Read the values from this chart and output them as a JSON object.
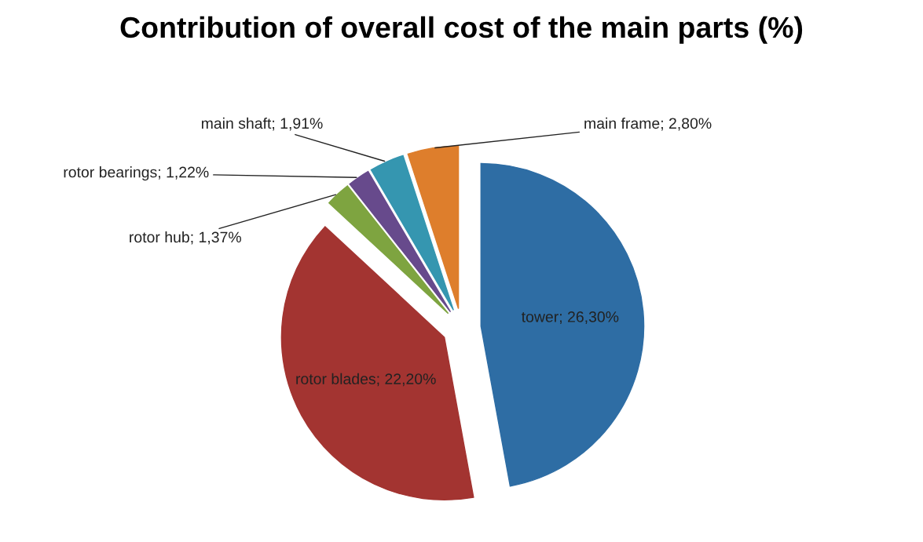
{
  "chart_data": {
    "type": "pie",
    "title": "Contribution of overall cost of the main parts (%)",
    "categories": [
      "tower",
      "rotor blades",
      "rotor hub",
      "rotor bearings",
      "main shaft",
      "main frame"
    ],
    "values": [
      26.3,
      22.2,
      1.37,
      1.22,
      1.91,
      2.8
    ],
    "value_labels": [
      "26,30%",
      "22,20%",
      "1,37%",
      "1,22%",
      "1,91%",
      "2,80%"
    ],
    "colors": [
      "#2e6da4",
      "#a33431",
      "#7ea440",
      "#674a8c",
      "#3596b0",
      "#de7e2c"
    ],
    "legend": false
  }
}
